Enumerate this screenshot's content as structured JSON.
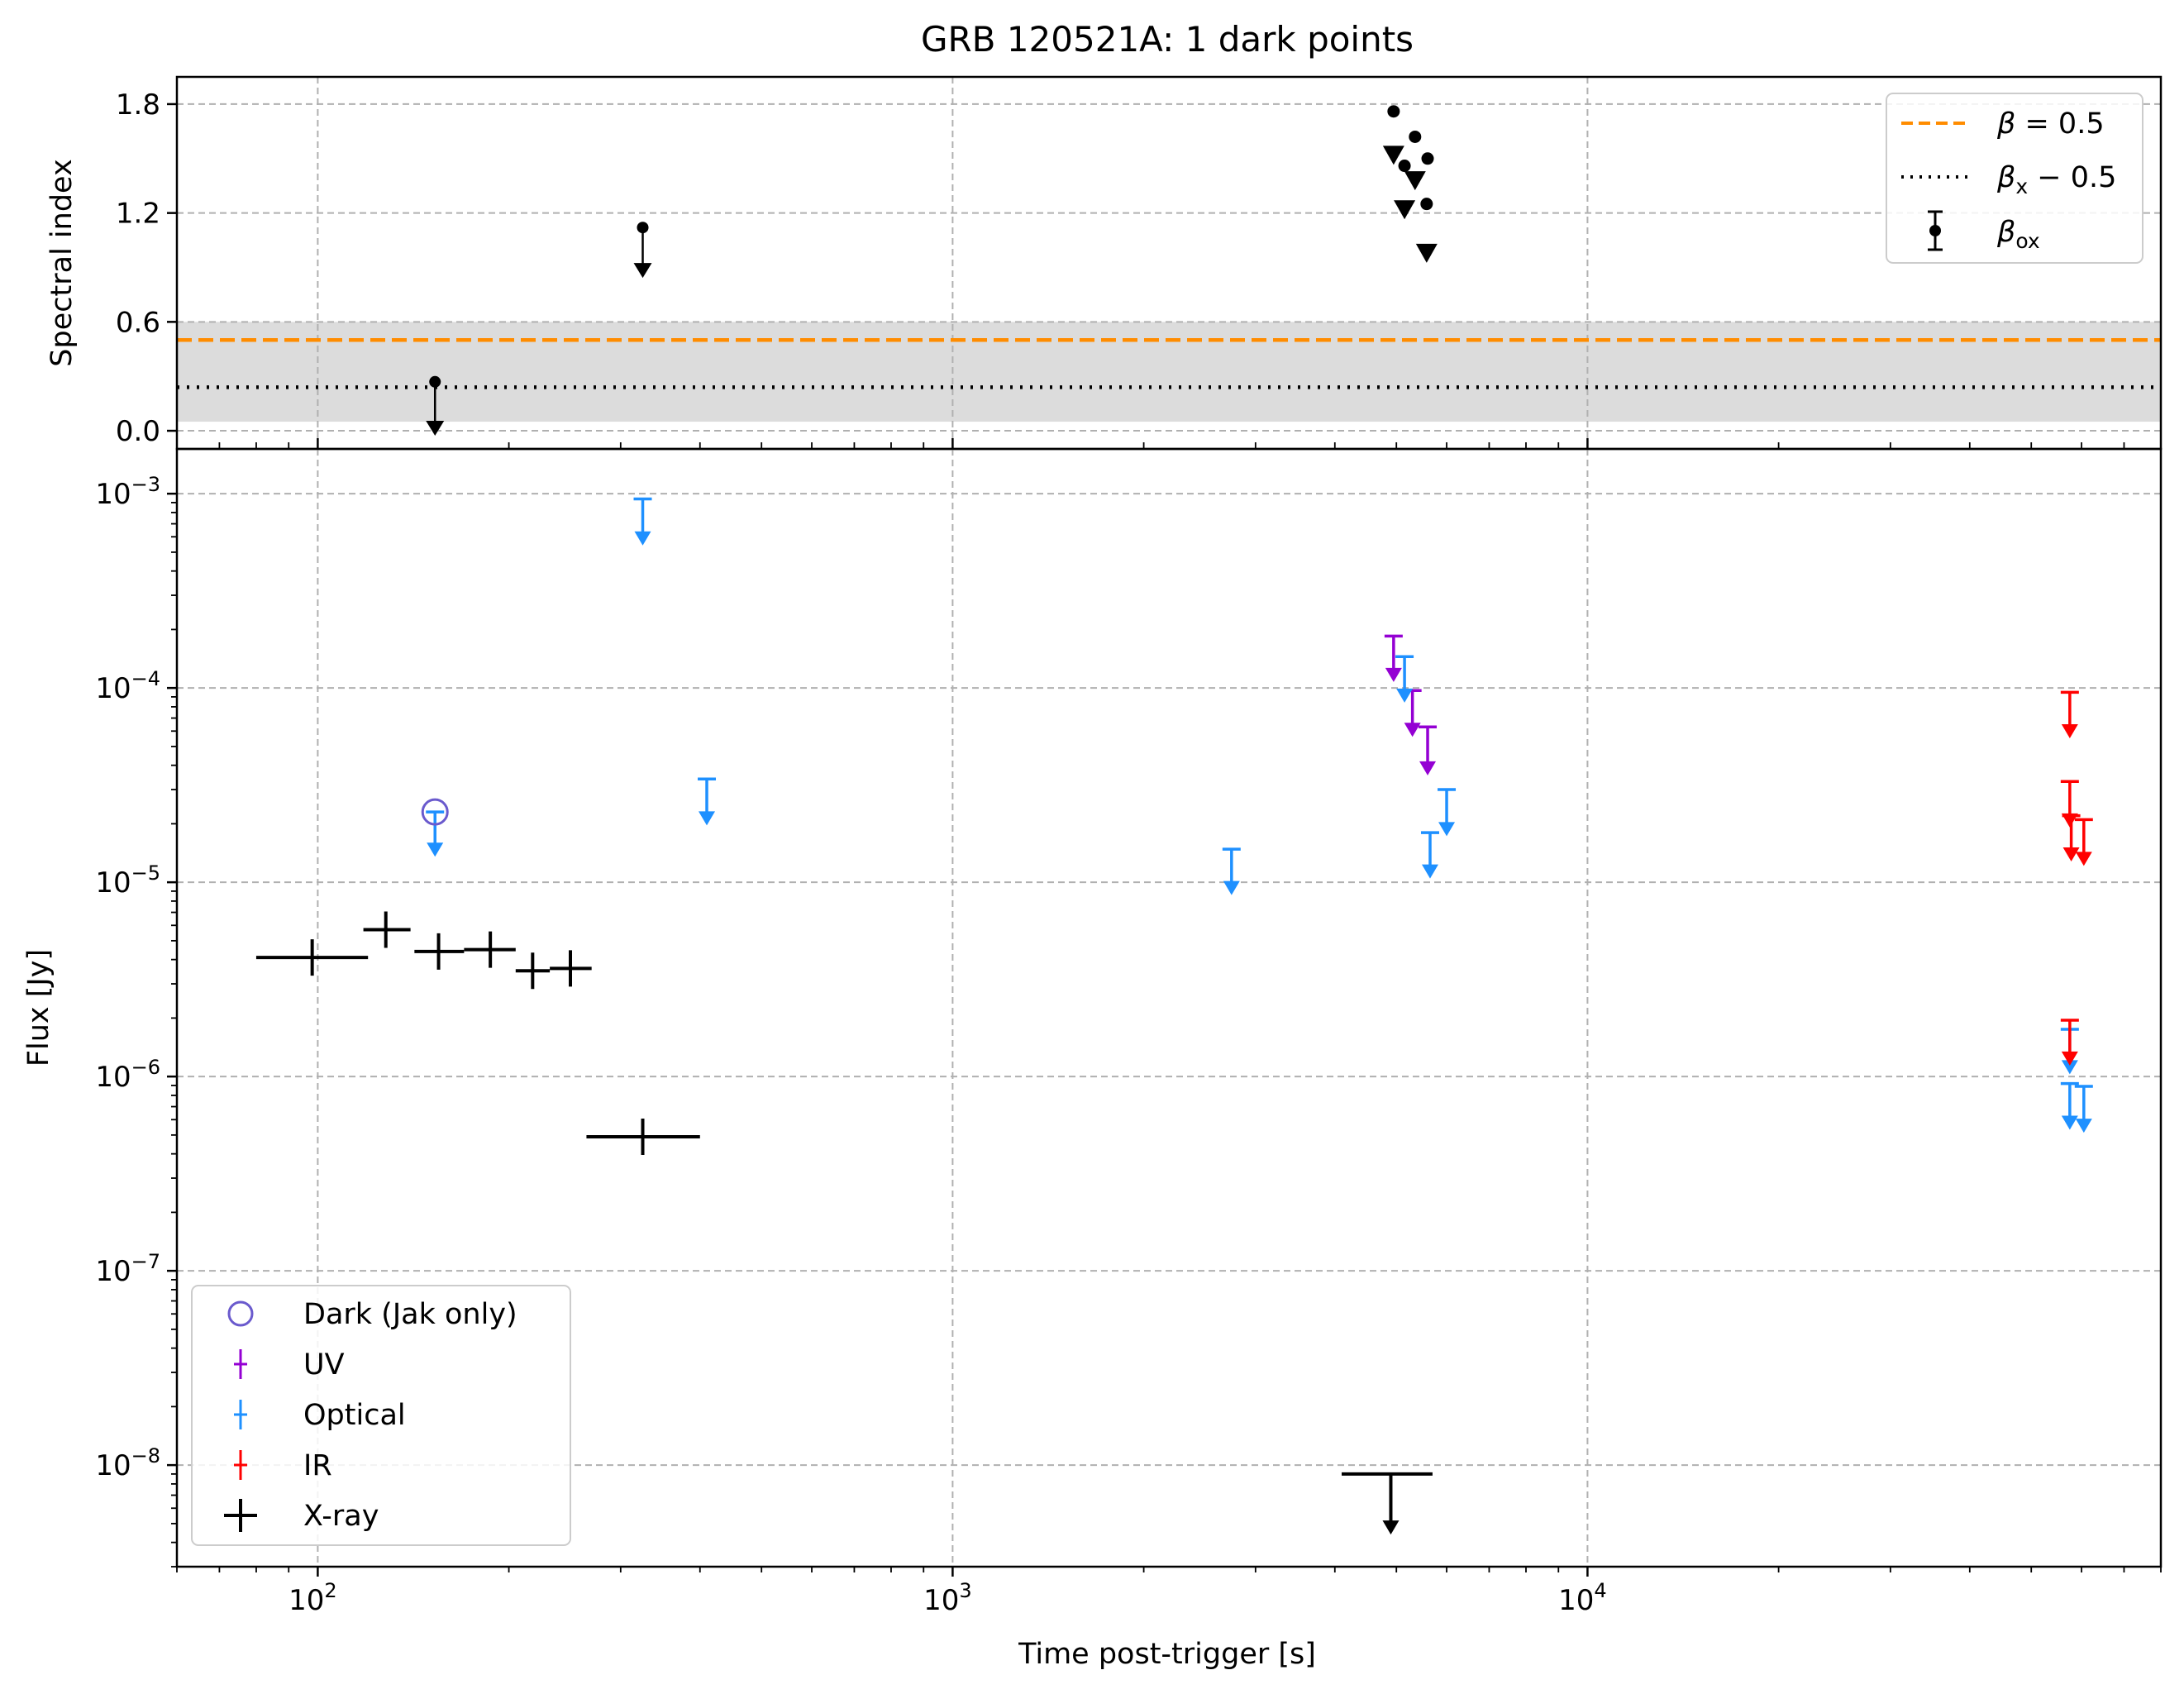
{
  "chart_data": [
    {
      "type": "scatter",
      "panel": "spectral-index",
      "title": "GRB 120521A: 1 dark points",
      "ylabel": "Spectral index",
      "xscale": "log",
      "xlim": [
        60,
        80000
      ],
      "ylim": [
        -0.1,
        1.95
      ],
      "yticks": [
        0.0,
        0.6,
        1.2,
        1.8
      ],
      "ytick_labels": [
        "0.0",
        "0.6",
        "1.2",
        "1.8"
      ],
      "grid": true,
      "legend_position": "top-right",
      "reference_lines": [
        {
          "name": "β = 0.5",
          "value": 0.5,
          "style": "dashed",
          "color": "#ff8c00"
        },
        {
          "name": "βx − 0.5",
          "value": 0.24,
          "style": "dotted",
          "color": "#000000"
        }
      ],
      "shaded_band": {
        "y0": 0.05,
        "y1": 0.6,
        "color": "#dcdcdc"
      },
      "series": [
        {
          "name": "βox",
          "color": "#000000",
          "upper_limits_with_arrow": [
            {
              "x": 153,
              "y": 0.27,
              "y_end": 0.0
            },
            {
              "x": 325,
              "y": 1.12,
              "y_end": 0.87
            }
          ],
          "points": [
            {
              "x": 4950,
              "y": 1.76
            },
            {
              "x": 5150,
              "y": 1.46
            },
            {
              "x": 5350,
              "y": 1.62
            },
            {
              "x": 5600,
              "y": 1.5
            },
            {
              "x": 5580,
              "y": 1.25
            }
          ],
          "triangle_markers": [
            {
              "x": 4950,
              "y": 1.52
            },
            {
              "x": 5150,
              "y": 1.22
            },
            {
              "x": 5350,
              "y": 1.38
            },
            {
              "x": 5580,
              "y": 0.98
            }
          ]
        }
      ]
    },
    {
      "type": "scatter",
      "panel": "flux",
      "xlabel": "Time post-trigger [s]",
      "ylabel": "Flux [Jy]",
      "xscale": "log",
      "yscale": "log",
      "xlim": [
        60,
        80000
      ],
      "ylim": [
        3e-09,
        0.0017
      ],
      "xticks": [
        100,
        1000,
        10000
      ],
      "xtick_labels": [
        "10",
        "10",
        "10"
      ],
      "xtick_exponents": [
        "2",
        "3",
        "4"
      ],
      "yticks": [
        1e-08,
        1e-07,
        1e-06,
        1e-05,
        0.0001,
        0.001
      ],
      "ytick_labels": [
        "10",
        "10",
        "10",
        "10",
        "10",
        "10"
      ],
      "ytick_exponents": [
        "−8",
        "−7",
        "−6",
        "−5",
        "−4",
        "−3"
      ],
      "grid": true,
      "legend_position": "bottom-left",
      "legend": [
        "Dark (Jak only)",
        "UV",
        "Optical",
        "IR",
        "X-ray"
      ],
      "colors": {
        "dark": "#6a5acd",
        "uv": "#9400d3",
        "optical": "#1e90ff",
        "ir": "#ff0000",
        "xray": "#000000"
      },
      "series": [
        {
          "name": "X-ray",
          "color": "#000000",
          "points": [
            {
              "x": 98,
              "y": 4.1e-06,
              "xerr": [
                80,
                120
              ]
            },
            {
              "x": 128,
              "y": 5.7e-06,
              "xerr": [
                118,
                140
              ]
            },
            {
              "x": 155,
              "y": 4.4e-06,
              "xerr": [
                142,
                170
              ]
            },
            {
              "x": 187,
              "y": 4.5e-06,
              "xerr": [
                170,
                205
              ]
            },
            {
              "x": 218,
              "y": 3.5e-06,
              "xerr": [
                205,
                232
              ]
            },
            {
              "x": 250,
              "y": 3.6e-06,
              "xerr": [
                232,
                270
              ]
            },
            {
              "x": 325,
              "y": 4.9e-07,
              "xerr": [
                265,
                400
              ]
            }
          ],
          "upper_limits": [
            {
              "x": 4900,
              "y": 9e-09,
              "y_end": 4.7e-09,
              "xerr": [
                4100,
                5700
              ]
            }
          ]
        },
        {
          "name": "UV",
          "color": "#9400d3",
          "upper_limits": [
            {
              "x": 4950,
              "y": 0.000185,
              "y_end": 0.000115
            },
            {
              "x": 5300,
              "y": 9.7e-05,
              "y_end": 6e-05
            },
            {
              "x": 5600,
              "y": 6.3e-05,
              "y_end": 3.8e-05
            }
          ]
        },
        {
          "name": "Optical",
          "color": "#1e90ff",
          "upper_limits": [
            {
              "x": 153,
              "y": 2.3e-05,
              "y_end": 1.45e-05
            },
            {
              "x": 325,
              "y": 0.00094,
              "y_end": 0.00058
            },
            {
              "x": 410,
              "y": 3.4e-05,
              "y_end": 2.1e-05
            },
            {
              "x": 2750,
              "y": 1.48e-05,
              "y_end": 9.2e-06
            },
            {
              "x": 5150,
              "y": 0.000145,
              "y_end": 9e-05
            },
            {
              "x": 5650,
              "y": 1.8e-05,
              "y_end": 1.12e-05
            },
            {
              "x": 6000,
              "y": 3e-05,
              "y_end": 1.85e-05
            },
            {
              "x": 57500,
              "y": 1.75e-06,
              "y_end": 1.1e-06
            },
            {
              "x": 57500,
              "y": 9.2e-07,
              "y_end": 5.7e-07
            },
            {
              "x": 60500,
              "y": 8.9e-07,
              "y_end": 5.5e-07
            }
          ]
        },
        {
          "name": "IR",
          "color": "#ff0000",
          "upper_limits": [
            {
              "x": 57500,
              "y": 9.5e-05,
              "y_end": 5.9e-05
            },
            {
              "x": 57500,
              "y": 3.3e-05,
              "y_end": 2.05e-05
            },
            {
              "x": 57800,
              "y": 2.2e-05,
              "y_end": 1.37e-05
            },
            {
              "x": 60500,
              "y": 2.1e-05,
              "y_end": 1.3e-05
            },
            {
              "x": 57500,
              "y": 1.95e-06,
              "y_end": 1.22e-06
            }
          ]
        },
        {
          "name": "Dark (Jak only)",
          "color": "#6a5acd",
          "points": [
            {
              "x": 153,
              "y": 2.3e-05
            }
          ]
        }
      ]
    }
  ],
  "legend_top": [
    {
      "prefix": "β",
      "suffix": " = 0.5",
      "sub": ""
    },
    {
      "prefix": "β",
      "suffix": " − 0.5",
      "sub": "x"
    },
    {
      "prefix": "β",
      "suffix": "",
      "sub": "ox"
    }
  ]
}
